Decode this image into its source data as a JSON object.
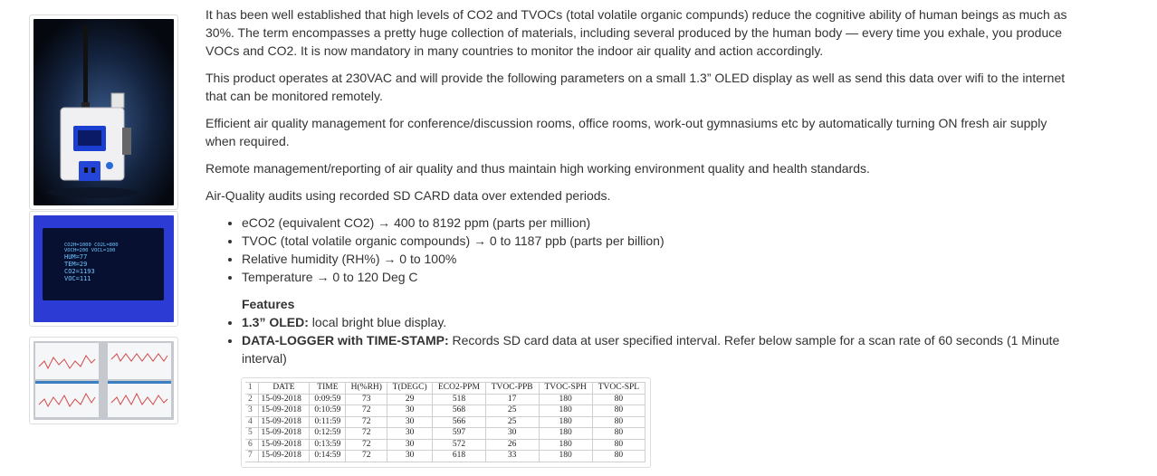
{
  "paragraphs": [
    "It has been well established that high levels of CO2 and TVOCs (total volatile organic compunds) reduce the cognitive ability of human beings as much as 30%. The term encompasses a pretty huge collection of materials, including several produced by the human body — every time you exhale, you produce VOCs and CO2. It is now mandatory in many countries to monitor the indoor air quality and action accordingly.",
    "This product operates at 230VAC and will provide the following parameters on a small 1.3” OLED display as well as send this data over wifi to the internet that can be monitored remotely.",
    "Efficient air quality management for conference/discussion rooms, office rooms, work-out gymnasiums etc by automatically turning ON fresh air supply when required.",
    "Remote management/reporting of air quality and thus maintain high working environment quality and health standards.",
    "Air-Quality audits using recorded SD CARD data over extended periods."
  ],
  "parameters": [
    "eCO2 (equivalent CO2) → 400 to 8192 ppm (parts per million)",
    "TVOC (total volatile organic compounds) → 0 to 1187 ppb (parts per billion)",
    "Relative humidity (RH%) → 0 to 100%",
    "Temperature → 0 to 120 Deg C"
  ],
  "features_heading": "Features",
  "features": [
    {
      "title": "1.3” OLED:",
      "text": " local bright blue display."
    },
    {
      "title": "DATA-LOGGER with TIME-STAMP:",
      "text": " Records SD card data at user specified interval. Refer below sample for a scan rate of 60 seconds (1 Minute interval)"
    }
  ],
  "oled_display": {
    "line1": "CO2H=1000   CO2L=800",
    "line2": "VOCH=200    VOCL=100",
    "line3": "HUM=77",
    "line4": "TEM=29",
    "line5": "CO2=1193",
    "line6": "VOC=111"
  },
  "log_table": {
    "headers": [
      "DATE",
      "TIME",
      "H(%RH)",
      "T(DEGC)",
      "ECO2-PPM",
      "TVOC-PPB",
      "TVOC-SPH",
      "TVOC-SPL"
    ],
    "rows": [
      {
        "n": "2",
        "cells": [
          "15-09-2018",
          "0:09:59",
          "73",
          "29",
          "518",
          "17",
          "180",
          "80"
        ]
      },
      {
        "n": "3",
        "cells": [
          "15-09-2018",
          "0:10:59",
          "72",
          "30",
          "568",
          "25",
          "180",
          "80"
        ]
      },
      {
        "n": "4",
        "cells": [
          "15-09-2018",
          "0:11:59",
          "72",
          "30",
          "566",
          "25",
          "180",
          "80"
        ]
      },
      {
        "n": "5",
        "cells": [
          "15-09-2018",
          "0:12:59",
          "72",
          "30",
          "597",
          "30",
          "180",
          "80"
        ]
      },
      {
        "n": "6",
        "cells": [
          "15-09-2018",
          "0:13:59",
          "72",
          "30",
          "572",
          "26",
          "180",
          "80"
        ]
      },
      {
        "n": "7",
        "cells": [
          "15-09-2018",
          "0:14:59",
          "72",
          "30",
          "618",
          "33",
          "180",
          "80"
        ]
      }
    ],
    "header_row_number": "1"
  }
}
